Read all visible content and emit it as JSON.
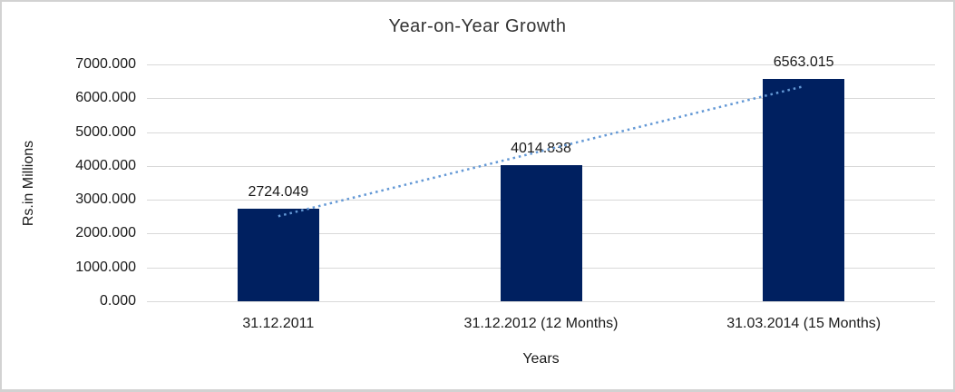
{
  "chart_data": {
    "type": "bar",
    "title": "Year-on-Year Growth",
    "categories": [
      "31.12.2011",
      "31.12.2012 (12 Months)",
      "31.03.2014 (15 Months)"
    ],
    "values": [
      2724.049,
      4014.838,
      6563.015
    ],
    "data_labels": [
      "2724.049",
      "4014.838",
      "6563.015"
    ],
    "xlabel": "Years",
    "ylabel": "Rs.in Millions",
    "ylim": [
      0,
      7000
    ],
    "ytick_step": 1000,
    "ytick_labels": [
      "0.000",
      "1000.000",
      "2000.000",
      "3000.000",
      "4000.000",
      "5000.000",
      "6000.000",
      "7000.000"
    ],
    "grid": true,
    "legend": "none",
    "trendline": {
      "type": "linear",
      "style": "dotted"
    },
    "colors": {
      "bar": "#002060",
      "trendline": "#6398d5",
      "gridline": "#d9d9d9",
      "frame_border": "#d2d2d2",
      "text": "#1a1a1a",
      "background": "#ffffff"
    }
  }
}
